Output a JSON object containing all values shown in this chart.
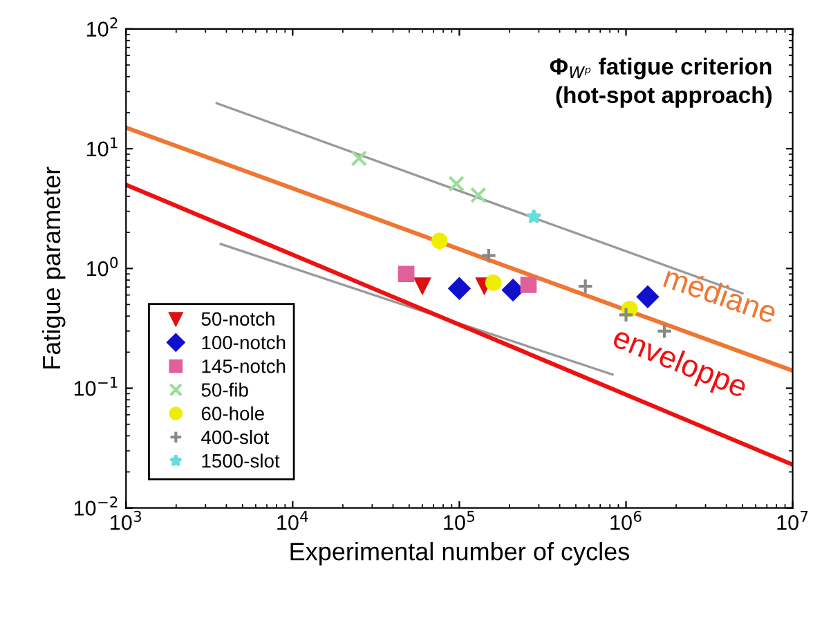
{
  "chart_data": {
    "type": "scatter",
    "xlabel": "Experimental number of cycles",
    "ylabel": "Fatigue parameter",
    "log": "xy",
    "xlim": [
      1000,
      10000000
    ],
    "ylim": [
      0.01,
      100
    ],
    "xticks": [
      {
        "value": 1000,
        "label": "10$^{3}$"
      },
      {
        "value": 10000,
        "label": "10$^{4}$"
      },
      {
        "value": 100000,
        "label": "10$^{5}$"
      },
      {
        "value": 1000000,
        "label": "10$^{6}$"
      },
      {
        "value": 10000000,
        "label": "10$^{7}$"
      }
    ],
    "yticks": [
      {
        "value": 0.01,
        "label": "10$^{−2}$"
      },
      {
        "value": 0.1,
        "label": "10$^{−1}$"
      },
      {
        "value": 1,
        "label": "10$^{0}$"
      },
      {
        "value": 10,
        "label": "10$^{1}$"
      },
      {
        "value": 100,
        "label": "10$^{2}$"
      }
    ],
    "grid": false,
    "legend": "bottom left",
    "series": [
      {
        "type": "line",
        "color": "#999999",
        "x": [
          3500,
          5000000
        ],
        "values": [
          24,
          0.62
        ]
      },
      {
        "type": "line",
        "color": "#999999",
        "x": [
          3700,
          830000
        ],
        "values": [
          1.6,
          0.13
        ]
      },
      {
        "type": "line",
        "color": "#ee7733",
        "x": [
          1000,
          10000000
        ],
        "values": [
          15,
          0.14
        ]
      },
      {
        "type": "line",
        "color": "#ee1111",
        "x": [
          1000,
          10000000
        ],
        "values": [
          5,
          0.023
        ]
      },
      {
        "name": "50-notch",
        "marker": "triangle",
        "color": "#dd1111",
        "x": [
          60000,
          141000
        ],
        "values": [
          0.72,
          0.72
        ]
      },
      {
        "name": "100-notch",
        "marker": "diamond",
        "color": "#1111cc",
        "x": [
          100000,
          210000,
          1350000
        ],
        "values": [
          0.68,
          0.66,
          0.58
        ]
      },
      {
        "name": "145-notch",
        "marker": "square",
        "color": "#e0609a",
        "x": [
          48000,
          260000
        ],
        "values": [
          0.9,
          0.73
        ]
      },
      {
        "name": "50-fib",
        "marker": "cross",
        "color": "#99dd99",
        "x": [
          25000,
          96000,
          130000
        ],
        "values": [
          8.3,
          5.1,
          4.1
        ]
      },
      {
        "name": "60-hole",
        "marker": "circle",
        "color": "#eeee00",
        "x": [
          76000,
          160000,
          1050000
        ],
        "values": [
          1.7,
          0.76,
          0.46
        ]
      },
      {
        "name": "400-slot",
        "marker": "plus",
        "color": "#888888",
        "x": [
          150000,
          570000,
          1000000,
          1700000
        ],
        "values": [
          1.28,
          0.71,
          0.41,
          0.3
        ]
      },
      {
        "name": "1500-slot",
        "marker": "star",
        "color": "#66dddd",
        "x": [
          280000
        ],
        "values": [
          2.7
        ]
      }
    ],
    "annotations": [
      "Φ$_{Wᵖ}$ fatigue criterion\n(hot-spot approach)",
      "médiane",
      "enveloppe"
    ]
  }
}
